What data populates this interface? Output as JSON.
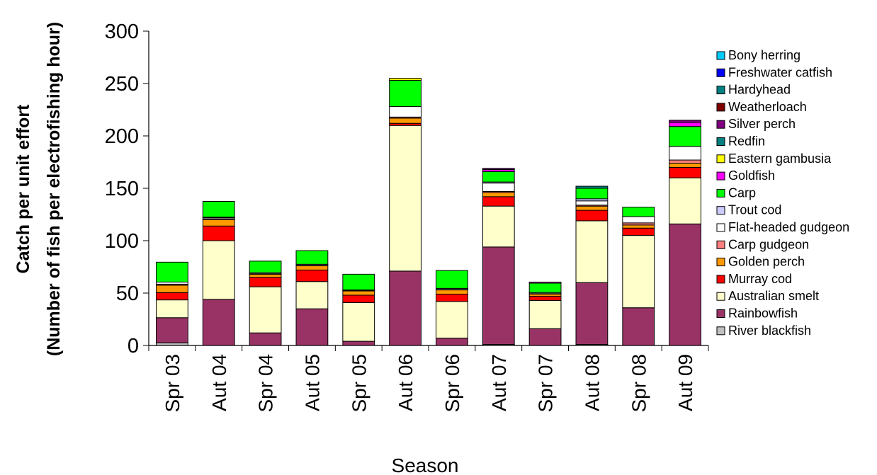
{
  "chart_data": {
    "type": "bar",
    "stacked": true,
    "xlabel": "Season",
    "ylabel_lines": [
      "Catch per unit effort",
      "(Number of fish per electrofishing hour)"
    ],
    "ylim": [
      0,
      300
    ],
    "yticks": [
      0,
      50,
      100,
      150,
      200,
      250,
      300
    ],
    "grid": false,
    "legend_position": "right",
    "categories": [
      "Spr 03",
      "Aut 04",
      "Spr 04",
      "Aut 05",
      "Spr 05",
      "Aut 06",
      "Spr 06",
      "Aut 07",
      "Spr 07",
      "Aut 08",
      "Spr 08",
      "Aut 09"
    ],
    "series": [
      {
        "name": "River blackfish",
        "color": "#c0c0c0",
        "values": [
          2.5,
          0,
          0,
          0,
          0,
          0,
          0,
          1,
          0,
          1,
          0,
          0
        ]
      },
      {
        "name": "Rainbowfish",
        "color": "#993366",
        "values": [
          24,
          44,
          12,
          35,
          4,
          71,
          7,
          93,
          16,
          59,
          36,
          116
        ]
      },
      {
        "name": "Australian smelt",
        "color": "#ffffcc",
        "values": [
          17,
          56,
          44,
          26,
          37,
          139,
          35,
          39,
          27,
          59,
          69,
          44
        ]
      },
      {
        "name": "Murray cod",
        "color": "#ff0000",
        "values": [
          7,
          14,
          9,
          11,
          7,
          2,
          7,
          9,
          4,
          10,
          7,
          10
        ]
      },
      {
        "name": "Golden perch",
        "color": "#ff9900",
        "values": [
          7,
          6,
          3,
          4,
          4,
          5,
          4,
          4,
          2,
          4,
          3,
          4
        ]
      },
      {
        "name": "Carp gudgeon",
        "color": "#ff8080",
        "values": [
          1,
          1,
          0.5,
          0.5,
          0.5,
          1,
          0.5,
          1,
          0.5,
          1,
          2,
          3
        ]
      },
      {
        "name": "Flat-headed gudgeon",
        "color": "#ffffff",
        "values": [
          2,
          1,
          1,
          1,
          0.5,
          10,
          1,
          8,
          1,
          4,
          6,
          13
        ]
      },
      {
        "name": "Trout cod",
        "color": "#ccccff",
        "values": [
          0,
          0.5,
          0,
          0,
          0,
          0,
          0,
          1,
          0,
          2,
          0,
          0
        ]
      },
      {
        "name": "Carp",
        "color": "#00ff00",
        "values": [
          19,
          15,
          11,
          13,
          15,
          25,
          17,
          10,
          9,
          10,
          9,
          19
        ]
      },
      {
        "name": "Goldfish",
        "color": "#ff00ff",
        "values": [
          0,
          0,
          0,
          0,
          0,
          0,
          0,
          2,
          1,
          0,
          0,
          4
        ]
      },
      {
        "name": "Eastern gambusia",
        "color": "#ffff00",
        "values": [
          0,
          0,
          0,
          0,
          0,
          2,
          0,
          0,
          0,
          0,
          0,
          0
        ]
      },
      {
        "name": "Redfin",
        "color": "#008080",
        "values": [
          0,
          0,
          0,
          0,
          0,
          0,
          0,
          0,
          0,
          2,
          0,
          0
        ]
      },
      {
        "name": "Silver perch",
        "color": "#800080",
        "values": [
          0,
          0,
          0,
          0,
          0,
          0,
          0,
          1,
          0,
          0,
          0,
          2
        ]
      },
      {
        "name": "Weatherloach",
        "color": "#800000",
        "values": [
          0,
          0,
          0,
          0,
          0,
          0,
          0,
          0,
          0,
          0,
          0,
          0
        ]
      },
      {
        "name": "Hardyhead",
        "color": "#008080",
        "values": [
          0,
          0,
          0,
          0,
          0,
          0,
          0,
          0,
          0,
          0,
          0,
          0
        ]
      },
      {
        "name": "Freshwater catfish",
        "color": "#0000ff",
        "values": [
          0,
          0,
          0,
          0,
          0,
          0,
          0,
          0,
          0,
          0,
          0,
          0
        ]
      },
      {
        "name": "Bony herring",
        "color": "#00ccff",
        "values": [
          0,
          0,
          0,
          0,
          0,
          0,
          0,
          0,
          0,
          0,
          0,
          0
        ]
      }
    ]
  }
}
